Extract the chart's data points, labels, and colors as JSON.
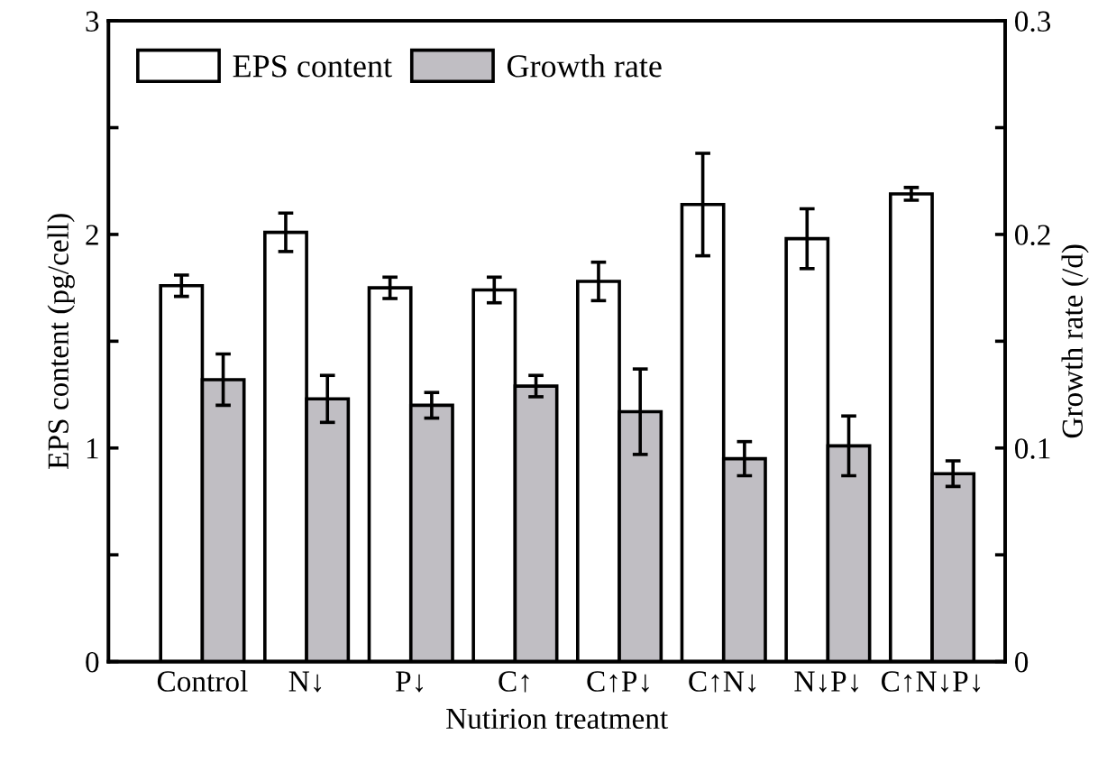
{
  "chart_data": {
    "type": "bar",
    "xlabel": "Nutirion treatment",
    "ylabel": "EPS content (pg/cell)",
    "y2label": "Growth rate (/d)",
    "categories": [
      "Control",
      "N↓",
      "P↓",
      "C↑",
      "C↑P↓",
      "C↑N↓",
      "N↓P↓",
      "C↑N↓P↓"
    ],
    "series": [
      {
        "name": "EPS content",
        "color": "#ffffff",
        "values": [
          1.76,
          2.01,
          1.75,
          1.74,
          1.78,
          2.14,
          1.98,
          2.19
        ],
        "errors": [
          0.05,
          0.09,
          0.05,
          0.06,
          0.09,
          0.24,
          0.14,
          0.03
        ]
      },
      {
        "name": "Growth rate",
        "color": "#c0bec3",
        "axis": "y2",
        "values": [
          0.132,
          0.123,
          0.12,
          0.129,
          0.117,
          0.095,
          0.101,
          0.088
        ],
        "errors": [
          0.012,
          0.011,
          0.006,
          0.005,
          0.02,
          0.008,
          0.014,
          0.006
        ]
      }
    ],
    "ylim": [
      0,
      3
    ],
    "yticks": [
      0,
      {
        "value": 0.5,
        "label": null
      },
      1,
      {
        "value": 1.5,
        "label": null
      },
      2,
      {
        "value": 2.5,
        "label": null
      },
      3
    ],
    "y2lim": [
      0,
      0.3
    ],
    "y2ticks": [
      {
        "value": 0,
        "label": "0"
      },
      {
        "value": 0.05,
        "label": null
      },
      {
        "value": 0.1,
        "label": "0.1"
      },
      {
        "value": 0.15,
        "label": null
      },
      {
        "value": 0.2,
        "label": "0.2"
      },
      {
        "value": 0.25,
        "label": null
      },
      {
        "value": 0.3,
        "label": "0.3"
      }
    ],
    "legend": "top left",
    "grid": false
  }
}
